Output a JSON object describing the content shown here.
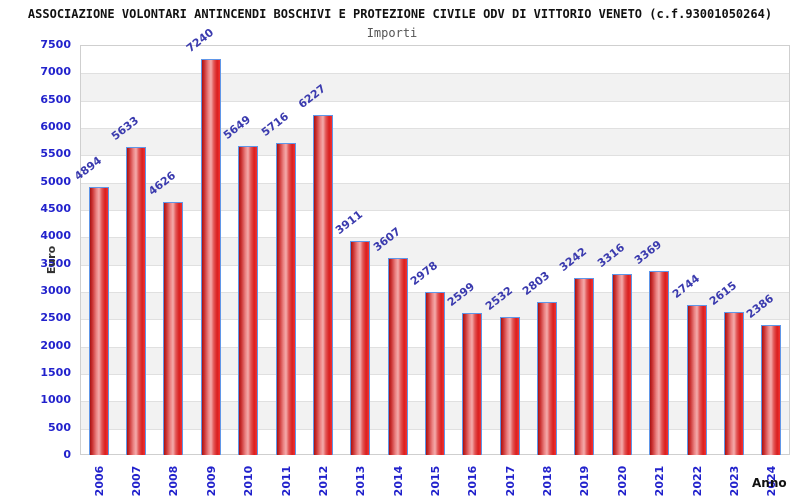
{
  "header": {
    "title": "ASSOCIAZIONE VOLONTARI ANTINCENDI BOSCHIVI E PROTEZIONE CIVILE ODV DI VITTORIO VENETO (c.f.93001050264)",
    "subtitle": "Importi"
  },
  "chart_data": {
    "type": "bar",
    "title": "ASSOCIAZIONE VOLONTARI ANTINCENDI BOSCHIVI E PROTEZIONE CIVILE ODV DI VITTORIO VENETO (c.f.93001050264)",
    "subtitle": "Importi",
    "categories": [
      "2006",
      "2007",
      "2008",
      "2009",
      "2010",
      "2011",
      "2012",
      "2013",
      "2014",
      "2015",
      "2016",
      "2017",
      "2018",
      "2019",
      "2020",
      "2021",
      "2022",
      "2023",
      "2024"
    ],
    "values": [
      4894,
      5633,
      4626,
      7240,
      5649,
      5716,
      6227,
      3911,
      3607,
      2978,
      2599,
      2532,
      2803,
      3242,
      3316,
      3369,
      2744,
      2615,
      2386
    ],
    "xlabel": "Anno",
    "ylabel": "Euro",
    "ylim": [
      0,
      7500
    ],
    "ytick_step": 500,
    "grid": true,
    "legend": "none",
    "colors": {
      "bar_fill": "#e02020",
      "bar_border": "#5f96e8",
      "tick_label": "#2222cc",
      "value_label": "#3a3aae",
      "band_gray": "#f2f2f2",
      "gridline": "#e0e0e0",
      "title": "#111111",
      "subtitle": "#555555"
    }
  }
}
